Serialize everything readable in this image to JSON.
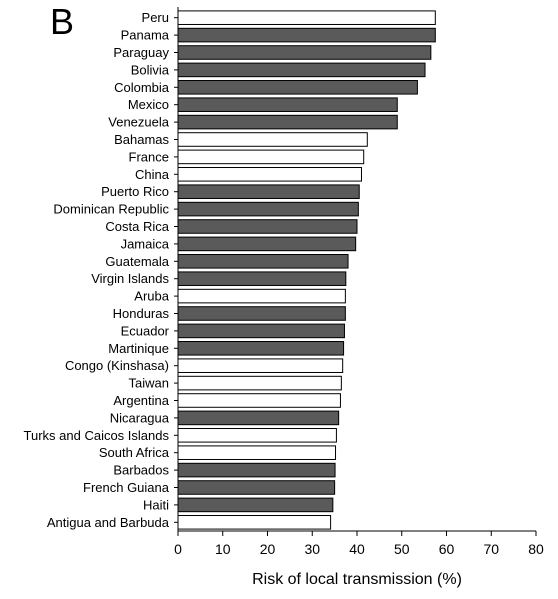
{
  "panel_label": "B",
  "chart_data": {
    "type": "bar",
    "orientation": "horizontal",
    "xlabel": "Risk of local transmission (%)",
    "ylabel": "",
    "xlim": [
      0,
      80
    ],
    "xticks": [
      0,
      10,
      20,
      30,
      40,
      50,
      60,
      70,
      80
    ],
    "grid": false,
    "legend": "none",
    "colors": {
      "filled": "#5a5a5a",
      "open": "#ffffff",
      "edge": "#000000"
    },
    "categories": [
      "Peru",
      "Panama",
      "Paraguay",
      "Bolivia",
      "Colombia",
      "Mexico",
      "Venezuela",
      "Bahamas",
      "France",
      "China",
      "Puerto Rico",
      "Dominican Republic",
      "Costa Rica",
      "Jamaica",
      "Guatemala",
      "Virgin Islands",
      "Aruba",
      "Honduras",
      "Ecuador",
      "Martinique",
      "Congo (Kinshasa)",
      "Taiwan",
      "Argentina",
      "Nicaragua",
      "Turks and Caicos Islands",
      "South Africa",
      "Barbados",
      "French Guiana",
      "Haiti",
      "Antigua and Barbuda"
    ],
    "values": [
      57.5,
      57.5,
      56.5,
      55.2,
      53.5,
      49,
      49,
      42.3,
      41.5,
      41,
      40.5,
      40.3,
      40,
      39.7,
      38,
      37.5,
      37.4,
      37.4,
      37.2,
      37,
      36.8,
      36.5,
      36.3,
      35.9,
      35.4,
      35.2,
      35.1,
      35,
      34.6,
      34.1
    ],
    "filled": [
      false,
      true,
      true,
      true,
      true,
      true,
      true,
      false,
      false,
      false,
      true,
      true,
      true,
      true,
      true,
      true,
      false,
      true,
      true,
      true,
      false,
      false,
      false,
      true,
      false,
      false,
      true,
      true,
      true,
      false
    ]
  }
}
